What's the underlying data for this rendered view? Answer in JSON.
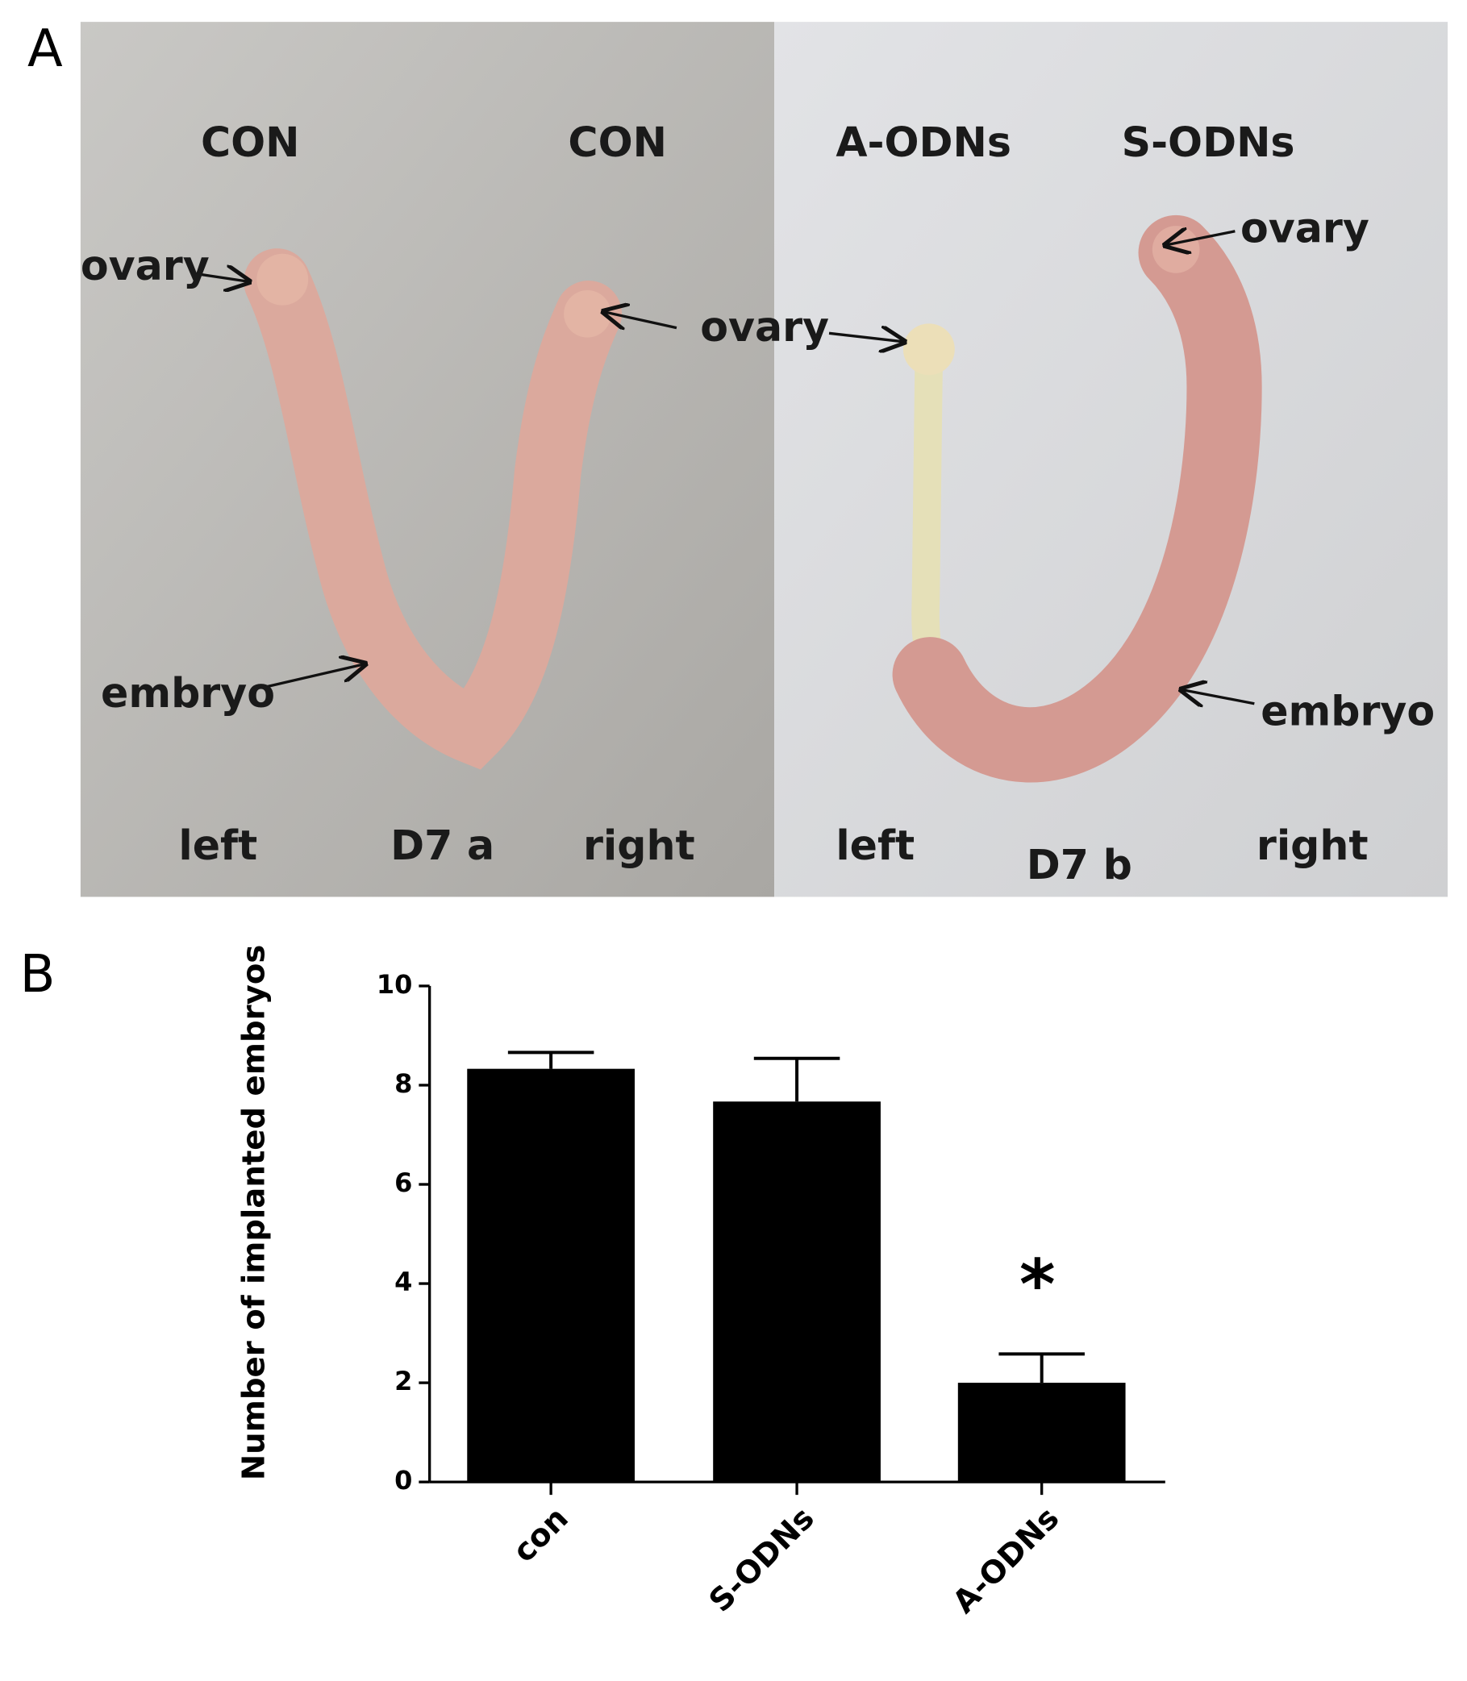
{
  "panel_a": {
    "letter": "A",
    "labels": [
      "CON",
      "CON",
      "A-ODNs",
      "S-ODNs",
      "ovary",
      "ovary",
      "ovary",
      "embryo",
      "embryo",
      "left",
      "D7 a",
      "right",
      "left",
      "D7 b",
      "right"
    ]
  },
  "chart_data": {
    "type": "bar",
    "letter": "B",
    "y_label": "Number of implanted embryos",
    "categories": [
      "con",
      "S-ODNs",
      "A-ODNs"
    ],
    "values": [
      8.33,
      7.67,
      2.0
    ],
    "errors": [
      0.33,
      0.87,
      0.58
    ],
    "color": "#000000",
    "annotation": "*",
    "ylim": [
      0,
      10
    ],
    "yticks": [
      0,
      2,
      4,
      6,
      8,
      10
    ],
    "grid": false
  }
}
